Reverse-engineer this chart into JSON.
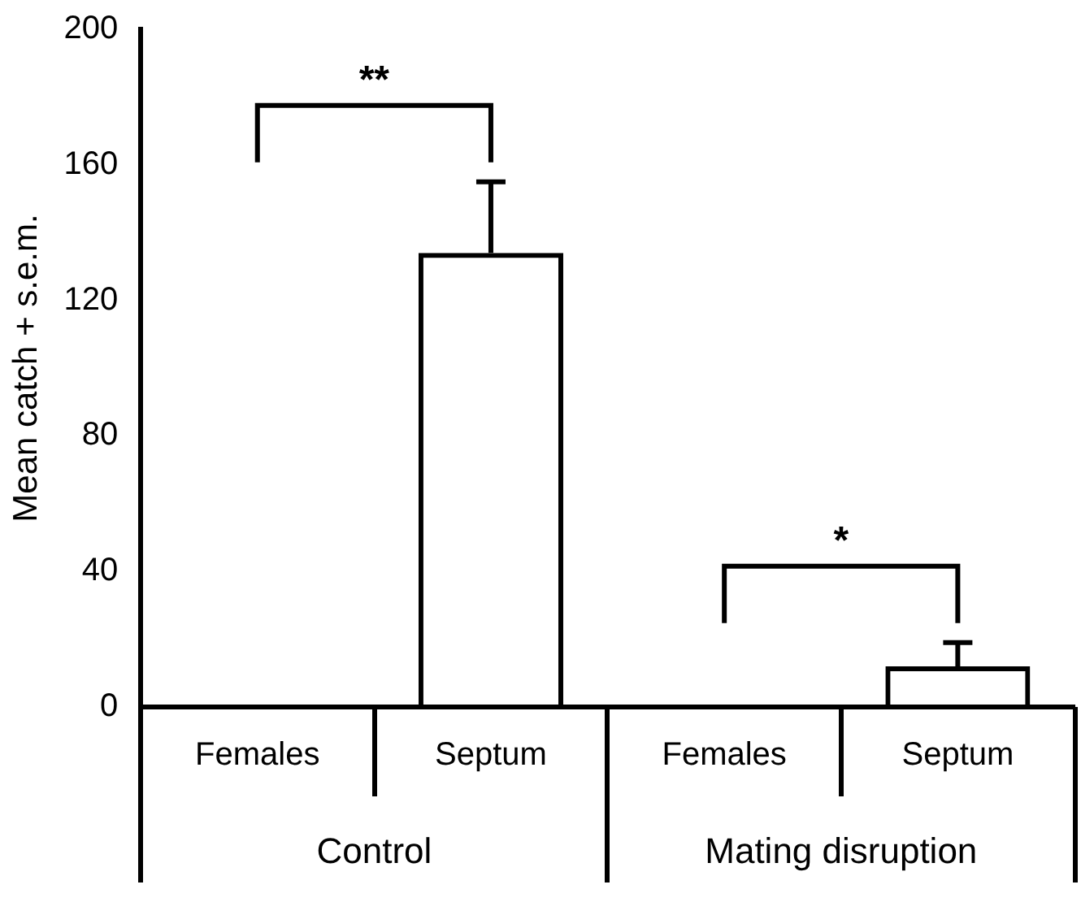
{
  "chart_data": {
    "type": "bar",
    "ylabel": "Mean catch + s.e.m.",
    "categories": [
      "Females",
      "Septum",
      "Females",
      "Septum"
    ],
    "values": [
      0.5,
      134,
      0,
      12
    ],
    "errors": [
      null,
      21,
      null,
      7
    ],
    "color": "#000000",
    "ylim": [
      0,
      200
    ],
    "yticks": [
      0,
      40,
      80,
      120,
      160,
      200
    ],
    "grid": false,
    "legend": false,
    "annotations": [
      "**",
      "*",
      "Control",
      "Mating disruption"
    ]
  }
}
